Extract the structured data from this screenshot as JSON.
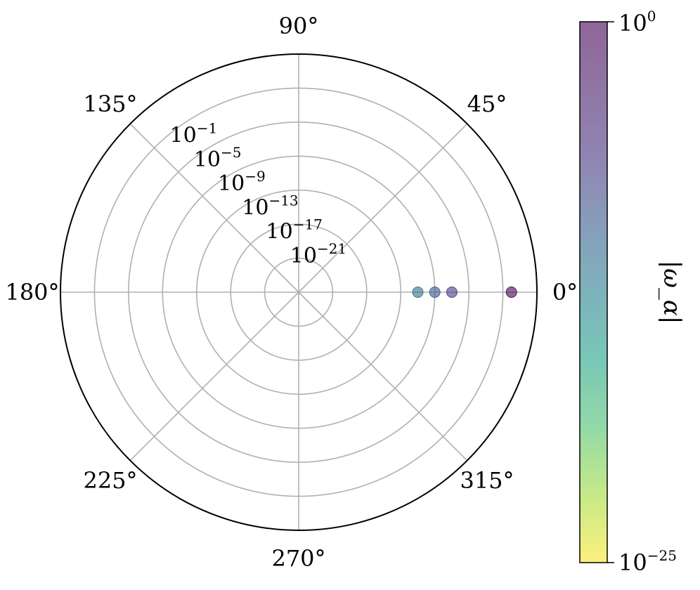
{
  "chart_data": {
    "type": "scatter",
    "projection": "polar",
    "radial_scale": "log",
    "radial_range": [
      1e-25,
      1000.0
    ],
    "angular_ticks": [
      {
        "deg": 0,
        "label": "0°"
      },
      {
        "deg": 45,
        "label": "45°"
      },
      {
        "deg": 90,
        "label": "90°"
      },
      {
        "deg": 135,
        "label": "135°"
      },
      {
        "deg": 180,
        "label": "180°"
      },
      {
        "deg": 225,
        "label": "225°"
      },
      {
        "deg": 270,
        "label": "270°"
      },
      {
        "deg": 315,
        "label": "315°"
      }
    ],
    "radial_ticks": [
      {
        "value": 1e-21,
        "base": "10",
        "exp": "−21"
      },
      {
        "value": 1e-17,
        "base": "10",
        "exp": "−17"
      },
      {
        "value": 1e-13,
        "base": "10",
        "exp": "−13"
      },
      {
        "value": 1e-09,
        "base": "10",
        "exp": "−9"
      },
      {
        "value": 1e-05,
        "base": "10",
        "exp": "−5"
      },
      {
        "value": 0.1,
        "base": "10",
        "exp": "−1"
      }
    ],
    "radial_label_angle_deg": 135,
    "grid": true,
    "points": [
      {
        "theta_deg": 0,
        "r": 1e-07,
        "color_value": 1e-07
      },
      {
        "theta_deg": 0,
        "r": 1e-09,
        "color_value": 1e-09
      },
      {
        "theta_deg": 0,
        "r": 1e-11,
        "color_value": 1e-11
      },
      {
        "theta_deg": 0,
        "r": 1.0,
        "color_value": 1.0
      }
    ],
    "colorbar": {
      "label": "|ω_α|",
      "colormap": "viridis_r",
      "scale": "log",
      "range": [
        1e-25,
        1.0
      ],
      "top_tick": {
        "base": "10",
        "exp": "0"
      },
      "bottom_tick": {
        "base": "10",
        "exp": "−25"
      },
      "alpha": 0.6
    }
  }
}
